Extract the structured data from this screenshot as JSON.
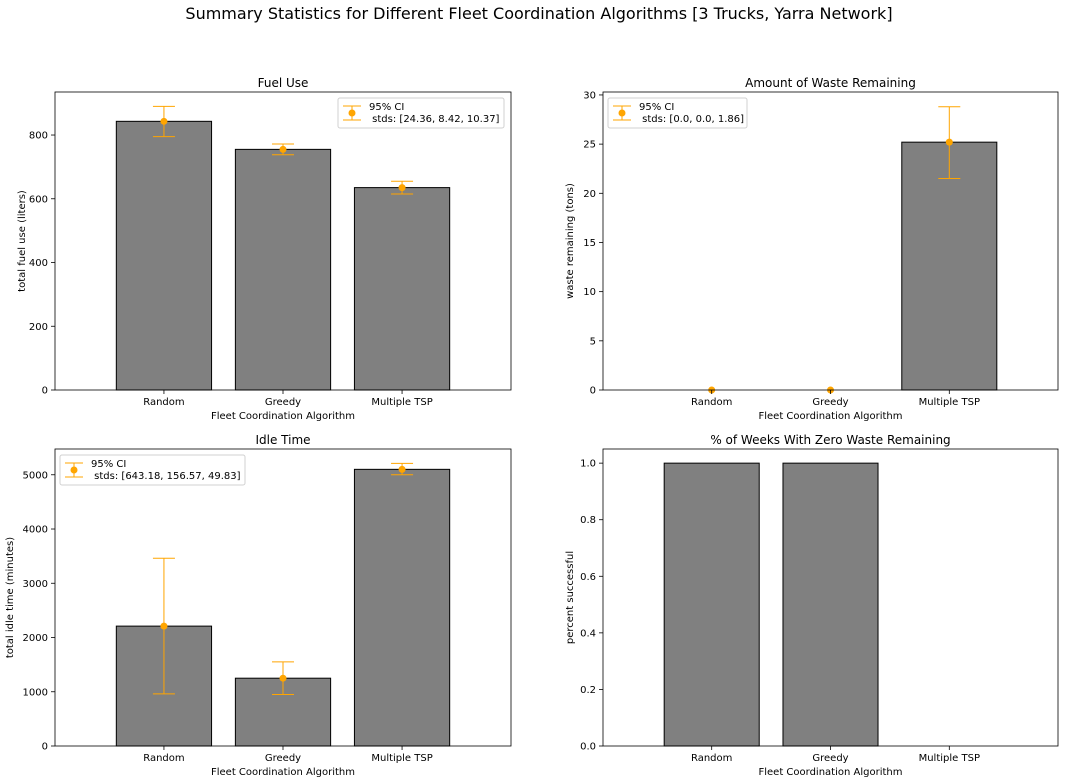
{
  "figure": {
    "title": "Summary Statistics for Different Fleet Coordination Algorithms [3 Trucks, Yarra Network]",
    "colors": {
      "bar": "#808080",
      "bar_edge": "#000000",
      "errorbar": "#FFA500"
    }
  },
  "chart_data": [
    {
      "type": "bar",
      "title": "Fuel Use",
      "xlabel": "Fleet Coordination Algorithm",
      "ylabel": "total fuel use (liters)",
      "categories": [
        "Random",
        "Greedy",
        "Multiple TSP"
      ],
      "values": [
        843,
        755,
        635
      ],
      "ci_low": [
        795,
        738,
        615
      ],
      "ci_high": [
        890,
        772,
        655
      ],
      "ylim": [
        0,
        935
      ],
      "yticks": [
        0,
        200,
        400,
        600,
        800
      ],
      "legend": {
        "label": "95% CI",
        "sublabel": " stds: [24.36, 8.42, 10.37]",
        "placement": "upper right"
      }
    },
    {
      "type": "bar",
      "title": "Amount of Waste Remaining",
      "xlabel": "Fleet Coordination Algorithm",
      "ylabel": "waste remaining (tons)",
      "categories": [
        "Random",
        "Greedy",
        "Multiple TSP"
      ],
      "values": [
        0,
        0,
        25.2
      ],
      "ci_low": [
        0,
        0,
        21.5
      ],
      "ci_high": [
        0,
        0,
        28.8
      ],
      "ylim": [
        0,
        30.3
      ],
      "yticks": [
        0,
        5,
        10,
        15,
        20,
        25,
        30
      ],
      "legend": {
        "label": "95% CI",
        "sublabel": " stds: [0.0, 0.0, 1.86]",
        "placement": "upper left"
      }
    },
    {
      "type": "bar",
      "title": "Idle Time",
      "xlabel": "Fleet Coordination Algorithm",
      "ylabel": "total idle time (minutes)",
      "categories": [
        "Random",
        "Greedy",
        "Multiple TSP"
      ],
      "values": [
        2210,
        1250,
        5100
      ],
      "ci_low": [
        960,
        950,
        5000
      ],
      "ci_high": [
        3460,
        1550,
        5210
      ],
      "ylim": [
        0,
        5475
      ],
      "yticks": [
        0,
        1000,
        2000,
        3000,
        4000,
        5000
      ],
      "legend": {
        "label": "95% CI",
        "sublabel": " stds: [643.18, 156.57, 49.83]",
        "placement": "upper left"
      }
    },
    {
      "type": "bar",
      "title": "% of Weeks With Zero Waste Remaining",
      "xlabel": "Fleet Coordination Algorithm",
      "ylabel": "percent successful",
      "categories": [
        "Random",
        "Greedy",
        "Multiple TSP"
      ],
      "values": [
        1.0,
        1.0,
        0.0
      ],
      "ylim": [
        0,
        1.05
      ],
      "yticks": [
        0.0,
        0.2,
        0.4,
        0.6,
        0.8,
        1.0
      ],
      "legend": null
    }
  ]
}
